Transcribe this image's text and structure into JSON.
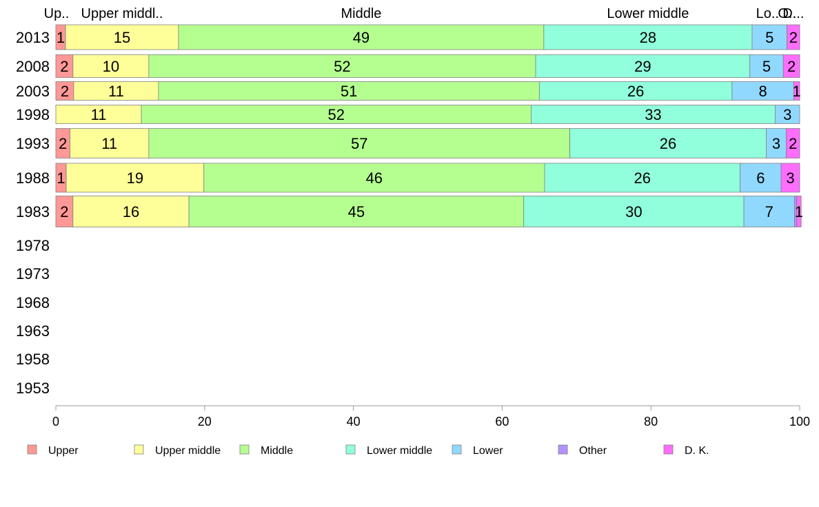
{
  "chart_data": {
    "type": "bar",
    "orientation": "horizontal",
    "stacked": true,
    "title": "",
    "xlabel": "",
    "ylabel": "",
    "xlim": [
      0,
      100
    ],
    "x_ticks": [
      "0",
      "20",
      "40",
      "60",
      "80",
      "100"
    ],
    "grid": false,
    "legend_position": "bottom",
    "categories": [
      "2013",
      "2008",
      "2003",
      "1998",
      "1993",
      "1988",
      "1983",
      "1978",
      "1973",
      "1968",
      "1963",
      "1958",
      "1953"
    ],
    "header_labels": [
      "Up..",
      "Upper middl..",
      "Middle",
      "Lower middle",
      "Lo..",
      "O..",
      "D..."
    ],
    "series": [
      {
        "name": "Upper",
        "color": "#FF9896",
        "values": [
          1.3,
          2.3,
          2.4,
          0,
          1.9,
          1.4,
          2.3,
          null,
          null,
          null,
          null,
          null,
          null
        ],
        "labels": [
          "1",
          "2",
          "2",
          "",
          "2",
          "1",
          "2",
          "",
          "",
          "",
          "",
          "",
          ""
        ]
      },
      {
        "name": "Upper middle",
        "color": "#FFFF99",
        "values": [
          15.2,
          10.2,
          11.4,
          11.5,
          10.6,
          18.5,
          15.6,
          null,
          null,
          null,
          null,
          null,
          null
        ],
        "labels": [
          "15",
          "10",
          "11",
          "11",
          "11",
          "19",
          "16",
          "",
          "",
          "",
          "",
          "",
          ""
        ]
      },
      {
        "name": "Middle",
        "color": "#B5FF91",
        "values": [
          49.1,
          52.0,
          51.2,
          52.4,
          56.6,
          45.8,
          45.0,
          null,
          null,
          null,
          null,
          null,
          null
        ],
        "labels": [
          "49",
          "52",
          "51",
          "52",
          "57",
          "46",
          "45",
          "",
          "",
          "",
          "",
          "",
          ""
        ]
      },
      {
        "name": "Lower middle",
        "color": "#91FFDB",
        "values": [
          28.0,
          28.8,
          25.9,
          32.8,
          26.4,
          26.3,
          29.6,
          null,
          null,
          null,
          null,
          null,
          null
        ],
        "labels": [
          "28",
          "29",
          "26",
          "33",
          "26",
          "26",
          "30",
          "",
          "",
          "",
          "",
          "",
          ""
        ]
      },
      {
        "name": "Lower",
        "color": "#91D8FF",
        "values": [
          4.7,
          4.5,
          8.3,
          3.3,
          2.7,
          5.5,
          6.8,
          null,
          null,
          null,
          null,
          null,
          null
        ],
        "labels": [
          "5",
          "5",
          "8",
          "3",
          "3",
          "6",
          "7",
          "",
          "",
          "",
          "",
          "",
          ""
        ]
      },
      {
        "name": "Other",
        "color": "#B491FF",
        "values": [
          0,
          0,
          0,
          0,
          0,
          0,
          0.3,
          null,
          null,
          null,
          null,
          null,
          null
        ],
        "labels": [
          "",
          "",
          "",
          "",
          "",
          "",
          "",
          "",
          "",
          "",
          "",
          "",
          ""
        ]
      },
      {
        "name": "D. K.",
        "color": "#FF6DFF",
        "values": [
          1.7,
          2.2,
          0.8,
          0,
          1.8,
          2.5,
          0.6,
          null,
          null,
          null,
          null,
          null,
          null
        ],
        "labels": [
          "2",
          "2",
          "1",
          "",
          "2",
          "3",
          "1",
          "",
          "",
          "",
          "",
          "",
          ""
        ]
      }
    ]
  }
}
